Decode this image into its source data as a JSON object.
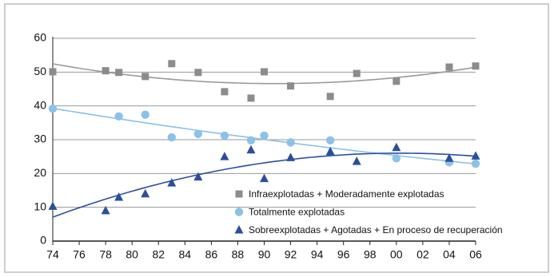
{
  "chart_data": {
    "type": "scatter",
    "trendline": "poly2",
    "xlim": [
      74,
      106
    ],
    "ylim": [
      0,
      60
    ],
    "xticks": [
      74,
      76,
      78,
      80,
      82,
      84,
      86,
      88,
      90,
      92,
      94,
      96,
      98,
      {
        "value": 100,
        "label": "00"
      },
      {
        "value": 102,
        "label": "02"
      },
      {
        "value": 104,
        "label": "04"
      },
      {
        "value": 106,
        "label": "06"
      }
    ],
    "yticks": [
      0,
      10,
      20,
      30,
      40,
      50,
      60
    ],
    "grid": true,
    "series": [
      {
        "name": "Infraexplotadas + Moderadamente explotadas",
        "color": "#8c8c8c",
        "trend_color": "#9a9a9a",
        "marker": "square",
        "x": [
          74,
          78,
          79,
          81,
          83,
          85,
          87,
          89,
          90,
          92,
          95,
          97,
          100,
          104,
          106
        ],
        "values": [
          50.1,
          50.4,
          49.9,
          48.7,
          52.5,
          49.9,
          44.2,
          42.3,
          50.1,
          45.9,
          42.8,
          49.6,
          47.3,
          51.5,
          51.8
        ]
      },
      {
        "name": "Totalmente explotadas",
        "color": "#8cc1e8",
        "trend_color": "#8cc1e8",
        "marker": "circle",
        "x": [
          74,
          79,
          81,
          83,
          85,
          87,
          89,
          90,
          92,
          95,
          100,
          104,
          106
        ],
        "values": [
          39.2,
          36.9,
          37.4,
          30.7,
          31.7,
          31.2,
          29.8,
          31.2,
          29.2,
          29.8,
          24.5,
          23.3,
          22.9
        ]
      },
      {
        "name": "Sobreexplotadas + Agotadas + En proceso de recuperación",
        "color": "#2a4fa0",
        "trend_color": "#2a4fa0",
        "marker": "triangle",
        "x": [
          74,
          78,
          79,
          81,
          83,
          85,
          87,
          89,
          90,
          92,
          95,
          97,
          100,
          104,
          106
        ],
        "values": [
          10.3,
          9,
          13,
          14,
          17.2,
          19,
          25,
          27,
          18.5,
          24.7,
          26.5,
          23.6,
          27.7,
          24.5,
          25.2
        ]
      }
    ]
  }
}
